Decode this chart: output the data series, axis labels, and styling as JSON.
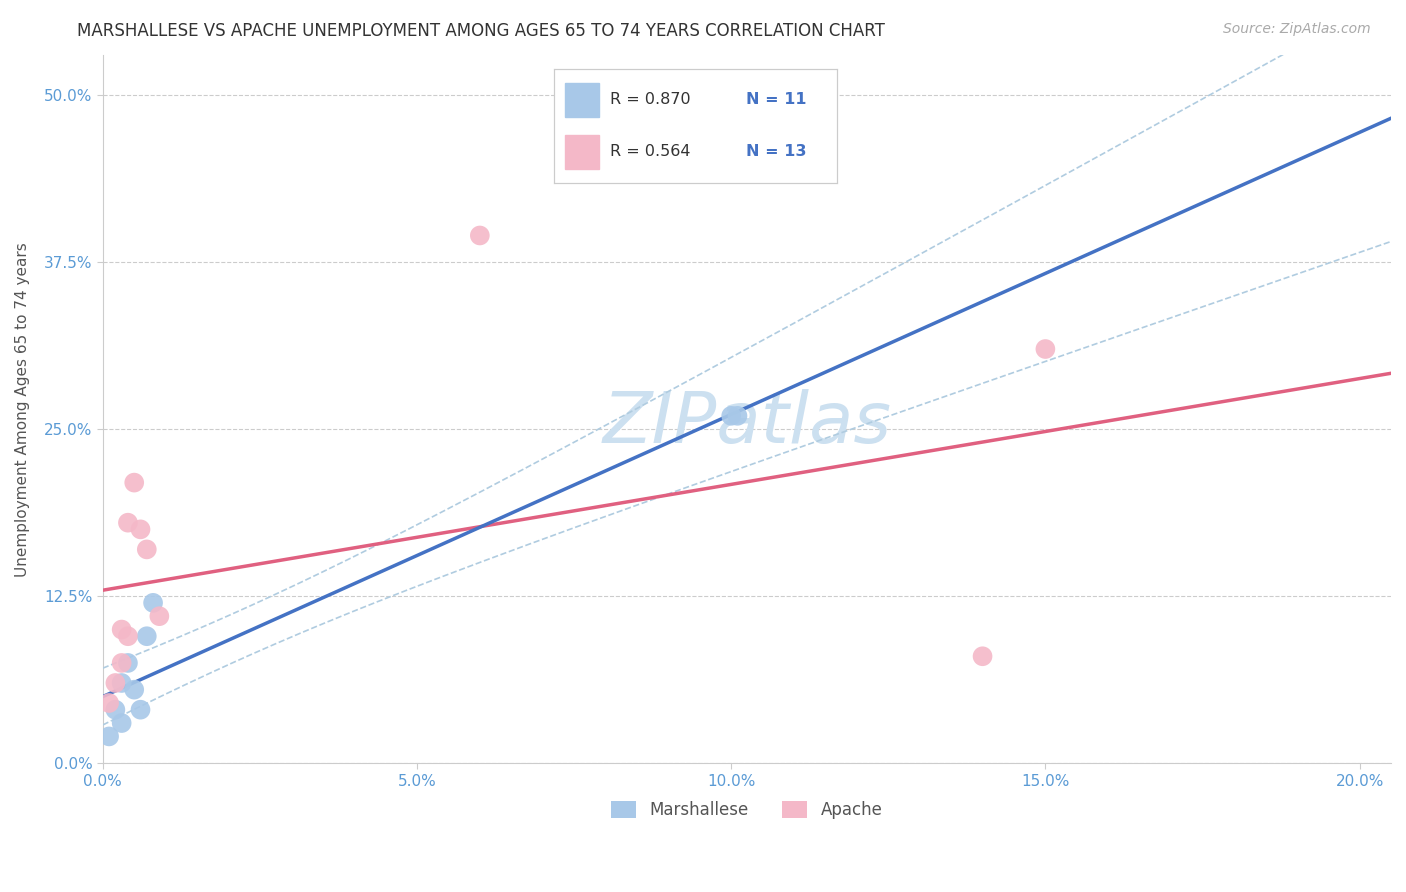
{
  "title": "MARSHALLESE VS APACHE UNEMPLOYMENT AMONG AGES 65 TO 74 YEARS CORRELATION CHART",
  "source": "Source: ZipAtlas.com",
  "xlabel_vals": [
    0.0,
    0.05,
    0.1,
    0.15,
    0.2
  ],
  "ylabel_vals": [
    0.0,
    0.125,
    0.25,
    0.375,
    0.5
  ],
  "ylabel_label": "Unemployment Among Ages 65 to 74 years",
  "marshallese_color": "#a8c8e8",
  "apache_color": "#f4b8c8",
  "marshallese_line_color": "#4472c4",
  "apache_line_color": "#e06080",
  "conf_line_color": "#b0cce0",
  "watermark": "ZIPatlas",
  "legend_r_color": "#333333",
  "legend_n_color": "#4472c4",
  "legend_r_marshallese": "R = 0.870",
  "legend_n_marshallese": "N = 11",
  "legend_r_apache": "R = 0.564",
  "legend_n_apache": "N = 13",
  "marshallese_x": [
    0.001,
    0.002,
    0.003,
    0.003,
    0.004,
    0.005,
    0.006,
    0.007,
    0.008,
    0.1,
    0.101
  ],
  "marshallese_y": [
    0.02,
    0.04,
    0.03,
    0.06,
    0.075,
    0.055,
    0.04,
    0.095,
    0.12,
    0.26,
    0.26
  ],
  "apache_x": [
    0.001,
    0.002,
    0.003,
    0.003,
    0.004,
    0.004,
    0.005,
    0.006,
    0.007,
    0.009,
    0.06,
    0.14,
    0.15
  ],
  "apache_y": [
    0.045,
    0.06,
    0.075,
    0.1,
    0.18,
    0.095,
    0.21,
    0.175,
    0.16,
    0.11,
    0.395,
    0.08,
    0.31
  ],
  "background_color": "#ffffff",
  "grid_color": "#cccccc",
  "title_fontsize": 12,
  "axis_label_fontsize": 11,
  "tick_fontsize": 11,
  "legend_fontsize": 12,
  "source_fontsize": 10,
  "watermark_fontsize": 52,
  "watermark_color": "#cce0f0",
  "xlim": [
    0.0,
    0.205
  ],
  "ylim": [
    0.0,
    0.53
  ]
}
